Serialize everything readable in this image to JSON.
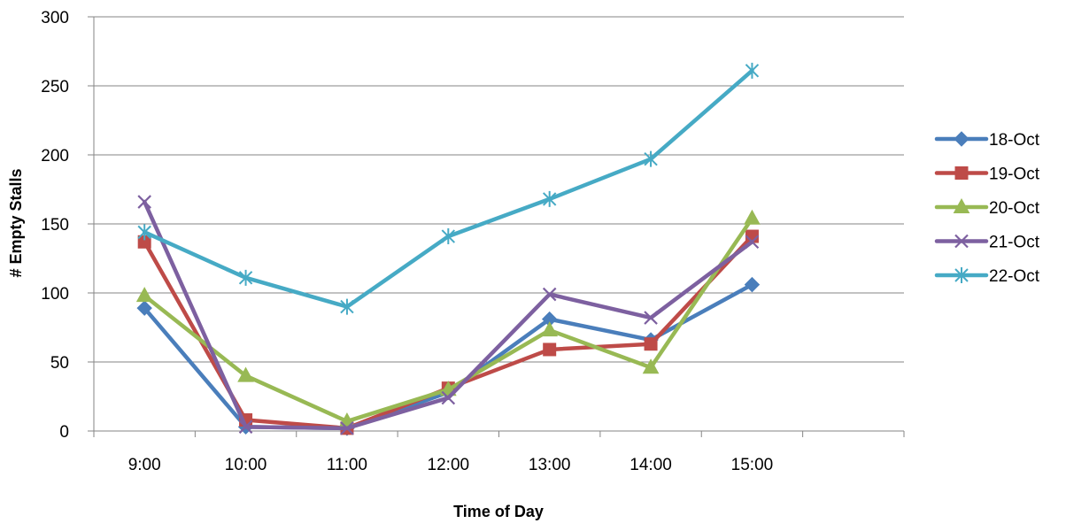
{
  "chart_data": {
    "type": "line",
    "title": "",
    "xlabel": "Time of Day",
    "ylabel": "# Empty Stalls",
    "categories": [
      "9:00",
      "10:00",
      "11:00",
      "12:00",
      "13:00",
      "14:00",
      "15:00"
    ],
    "x_slots": 8,
    "ylim": [
      0,
      300
    ],
    "yticks": [
      0,
      50,
      100,
      150,
      200,
      250,
      300
    ],
    "grid": "horizontal",
    "legend_position": "right",
    "series": [
      {
        "name": "18-Oct",
        "color": "#4a7ebb",
        "marker": "diamond",
        "values": [
          89,
          3,
          2,
          28,
          81,
          66,
          106
        ]
      },
      {
        "name": "19-Oct",
        "color": "#be4b48",
        "marker": "square",
        "values": [
          137,
          8,
          2,
          31,
          59,
          63,
          141
        ]
      },
      {
        "name": "20-Oct",
        "color": "#98b954",
        "marker": "triangle",
        "values": [
          98,
          40,
          7,
          30,
          73,
          46,
          154
        ]
      },
      {
        "name": "21-Oct",
        "color": "#7d60a0",
        "marker": "x",
        "values": [
          166,
          3,
          2,
          24,
          99,
          82,
          137
        ]
      },
      {
        "name": "22-Oct",
        "color": "#46aac5",
        "marker": "star",
        "values": [
          144,
          111,
          90,
          141,
          168,
          197,
          261
        ]
      }
    ]
  }
}
